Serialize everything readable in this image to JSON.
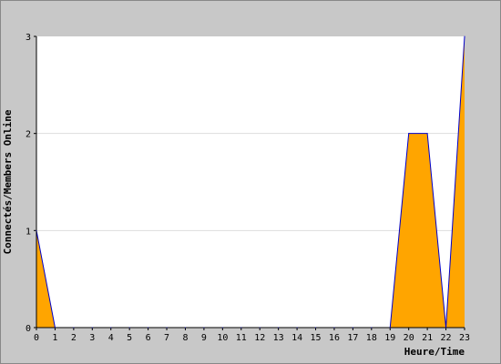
{
  "chart_data": {
    "type": "area",
    "xlabel": "Heure/Time",
    "ylabel": "Connectés/Members Online",
    "x": [
      0,
      1,
      2,
      3,
      4,
      5,
      6,
      7,
      8,
      9,
      10,
      11,
      12,
      13,
      14,
      15,
      16,
      17,
      18,
      19,
      20,
      21,
      22,
      23
    ],
    "xticks": [
      "0",
      "1",
      "2",
      "3",
      "4",
      "5",
      "6",
      "7",
      "8",
      "9",
      "10",
      "11",
      "12",
      "13",
      "14",
      "15",
      "16",
      "17",
      "18",
      "19",
      "20",
      "21",
      "22",
      "23"
    ],
    "yticks": [
      "0",
      "1",
      "2",
      "3"
    ],
    "series": [
      {
        "values": [
          1,
          0,
          0,
          0,
          0,
          0,
          0,
          0,
          0,
          0,
          0,
          0,
          0,
          0,
          0,
          0,
          0,
          0,
          0,
          0,
          2,
          2,
          0,
          3
        ]
      }
    ],
    "xlim": [
      0,
      23
    ],
    "ylim": [
      0,
      3
    ],
    "grid": true,
    "colors": {
      "fill": "#ffa500",
      "line": "#0000cc",
      "background": "#c8c8c8",
      "plot": "#ffffff",
      "grid": "#dddddd"
    }
  }
}
